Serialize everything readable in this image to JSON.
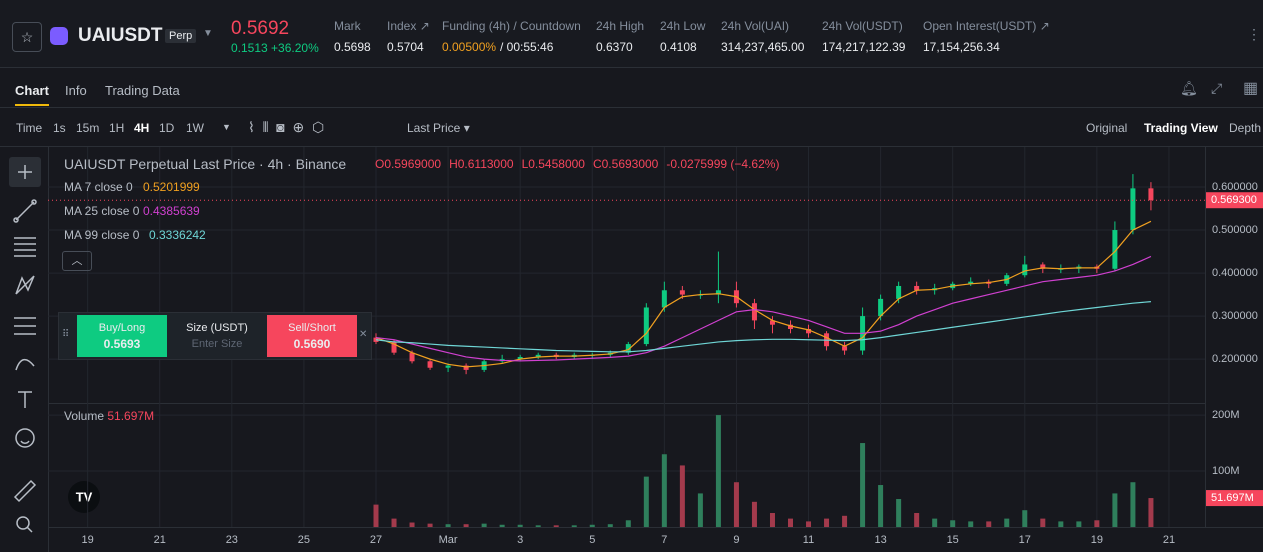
{
  "header": {
    "symbol": "UAIUSDT",
    "badge": "Perp",
    "price": "0.5692",
    "change": "0.1513 +36.20%",
    "stats": [
      {
        "label": "Mark",
        "value": "0.5698"
      },
      {
        "label": "Index ↗",
        "value": "0.5704"
      },
      {
        "label": "Funding (4h) / Countdown",
        "value": "0.00500%",
        "value2": "/ 00:55:46"
      },
      {
        "label": "24h High",
        "value": "0.6370"
      },
      {
        "label": "24h Low",
        "value": "0.4108"
      },
      {
        "label": "24h Vol(UAI)",
        "value": "314,237,465.00"
      },
      {
        "label": "24h Vol(USDT)",
        "value": "174,217,122.39"
      },
      {
        "label": "Open Interest(USDT) ↗",
        "value": "17,154,256.34"
      }
    ]
  },
  "tabs": [
    "Chart",
    "Info",
    "Trading Data"
  ],
  "toolbar": {
    "intervals": [
      "Time",
      "1s",
      "15m",
      "1H",
      "4H",
      "1D",
      "1W"
    ],
    "price_type": "Last Price",
    "views": [
      "Original",
      "Trading View",
      "Depth"
    ]
  },
  "legend": {
    "title": "UAIUSDT Perpetual Last Price · 4h · Binance",
    "ohlc": [
      "O0.5969000",
      "H0.6113000",
      "L0.5458000",
      "C0.5693000",
      "-0.0275999 (−4.62%)"
    ],
    "volume_name": "Volume",
    "volume_value": "51.697M"
  },
  "order_panel": {
    "buy": "Buy/Long",
    "buy_price": "0.5693",
    "size": "Size (USDT)",
    "size_placeholder": "Enter Size",
    "sell": "Sell/Short",
    "sell_price": "0.5690"
  },
  "chart_data": {
    "type": "candlestick",
    "up_color": "#0ecb81",
    "down_color": "#f6465d",
    "grid": true,
    "x": [
      27,
      27.5,
      28,
      28.5,
      29,
      29.5,
      30,
      30.5,
      31,
      31.5,
      32,
      32.5,
      33,
      33.5,
      34,
      34.5,
      35,
      35.5,
      36,
      36.5,
      37,
      37.5,
      38,
      38.5,
      39,
      39.5,
      40,
      40.5,
      41,
      41.5,
      42,
      42.5,
      43,
      43.5,
      44,
      44.5,
      45,
      45.5,
      46,
      46.5,
      47,
      47.5,
      48,
      48.5
    ],
    "open": [
      0.25,
      0.24,
      0.215,
      0.195,
      0.18,
      0.185,
      0.175,
      0.195,
      0.2,
      0.205,
      0.21,
      0.205,
      0.21,
      0.21,
      0.215,
      0.235,
      0.32,
      0.36,
      0.35,
      0.35,
      0.36,
      0.33,
      0.29,
      0.28,
      0.27,
      0.26,
      0.23,
      0.22,
      0.3,
      0.34,
      0.37,
      0.36,
      0.365,
      0.375,
      0.38,
      0.375,
      0.395,
      0.42,
      0.41,
      0.41,
      0.415,
      0.41,
      0.5,
      0.5969
    ],
    "high": [
      0.26,
      0.245,
      0.22,
      0.2,
      0.19,
      0.19,
      0.2,
      0.21,
      0.21,
      0.215,
      0.215,
      0.215,
      0.215,
      0.22,
      0.24,
      0.33,
      0.38,
      0.37,
      0.36,
      0.45,
      0.38,
      0.34,
      0.3,
      0.29,
      0.28,
      0.265,
      0.24,
      0.32,
      0.35,
      0.38,
      0.38,
      0.375,
      0.38,
      0.39,
      0.385,
      0.4,
      0.44,
      0.425,
      0.42,
      0.42,
      0.42,
      0.52,
      0.63,
      0.6113
    ],
    "low": [
      0.235,
      0.21,
      0.19,
      0.175,
      0.17,
      0.165,
      0.17,
      0.19,
      0.195,
      0.2,
      0.2,
      0.2,
      0.2,
      0.205,
      0.21,
      0.23,
      0.31,
      0.34,
      0.34,
      0.33,
      0.32,
      0.27,
      0.26,
      0.26,
      0.25,
      0.22,
      0.21,
      0.21,
      0.29,
      0.33,
      0.35,
      0.35,
      0.36,
      0.37,
      0.365,
      0.37,
      0.39,
      0.4,
      0.4,
      0.4,
      0.4,
      0.405,
      0.49,
      0.5458
    ],
    "close": [
      0.24,
      0.215,
      0.195,
      0.18,
      0.185,
      0.175,
      0.195,
      0.2,
      0.205,
      0.21,
      0.205,
      0.21,
      0.21,
      0.215,
      0.235,
      0.32,
      0.36,
      0.35,
      0.35,
      0.36,
      0.33,
      0.29,
      0.28,
      0.27,
      0.26,
      0.23,
      0.22,
      0.3,
      0.34,
      0.37,
      0.36,
      0.365,
      0.375,
      0.38,
      0.375,
      0.395,
      0.42,
      0.41,
      0.41,
      0.415,
      0.41,
      0.5,
      0.5969,
      0.5693
    ],
    "last_price_label": "0.569300",
    "xlim": [
      17.9,
      50.0
    ],
    "xticks": [
      19,
      21,
      23,
      25,
      27,
      {
        "value": 29,
        "label": "Mar"
      },
      {
        "value": 31,
        "label": "3"
      },
      {
        "value": 33,
        "label": "5"
      },
      {
        "value": 35,
        "label": "7"
      },
      {
        "value": 37,
        "label": "9"
      },
      {
        "value": 39,
        "label": "11"
      },
      {
        "value": 41,
        "label": "13"
      },
      {
        "value": 43,
        "label": "15"
      },
      {
        "value": 45,
        "label": "17"
      },
      {
        "value": 47,
        "label": "19"
      },
      {
        "value": 49,
        "label": "21"
      }
    ],
    "ylim": [
      0.105,
      0.686
    ],
    "yticks": [
      {
        "value": 0.6,
        "label": "0.600000"
      },
      {
        "value": 0.5,
        "label": "0.500000"
      },
      {
        "value": 0.4,
        "label": "0.400000"
      },
      {
        "value": 0.3,
        "label": "0.300000"
      },
      {
        "value": 0.2,
        "label": "0.200000"
      }
    ],
    "ma": [
      {
        "name": "MA 7 close 0",
        "legend_value": "0.5201999",
        "color": "#f0a020",
        "values": [
          0.25,
          0.235,
          0.215,
          0.2,
          0.188,
          0.182,
          0.185,
          0.19,
          0.2,
          0.205,
          0.207,
          0.207,
          0.209,
          0.212,
          0.222,
          0.26,
          0.32,
          0.345,
          0.35,
          0.352,
          0.345,
          0.315,
          0.29,
          0.277,
          0.268,
          0.25,
          0.23,
          0.25,
          0.3,
          0.34,
          0.36,
          0.362,
          0.37,
          0.375,
          0.378,
          0.385,
          0.405,
          0.412,
          0.41,
          0.412,
          0.412,
          0.45,
          0.5,
          0.5202
        ]
      },
      {
        "name": "MA 25 close 0",
        "legend_value": "0.4385639",
        "color": "#d040d0",
        "values": [
          0.25,
          0.245,
          0.235,
          0.225,
          0.215,
          0.205,
          0.2,
          0.197,
          0.196,
          0.197,
          0.198,
          0.2,
          0.202,
          0.204,
          0.207,
          0.215,
          0.23,
          0.25,
          0.27,
          0.29,
          0.31,
          0.315,
          0.31,
          0.3,
          0.29,
          0.275,
          0.26,
          0.26,
          0.265,
          0.28,
          0.3,
          0.315,
          0.33,
          0.34,
          0.35,
          0.36,
          0.37,
          0.38,
          0.385,
          0.39,
          0.395,
          0.405,
          0.42,
          0.4386
        ]
      },
      {
        "name": "MA 99 close 0",
        "legend_value": "0.3336242",
        "color": "#6fd6d6",
        "values": [
          0.245,
          0.24,
          0.238,
          0.235,
          0.232,
          0.23,
          0.228,
          0.226,
          0.224,
          0.222,
          0.22,
          0.219,
          0.218,
          0.217,
          0.217,
          0.22,
          0.225,
          0.23,
          0.235,
          0.24,
          0.243,
          0.245,
          0.246,
          0.246,
          0.245,
          0.244,
          0.243,
          0.245,
          0.25,
          0.256,
          0.262,
          0.268,
          0.274,
          0.28,
          0.286,
          0.292,
          0.298,
          0.304,
          0.31,
          0.315,
          0.32,
          0.325,
          0.33,
          0.3336
        ]
      }
    ],
    "volume": {
      "up_color": "#2f7f5c",
      "down_color": "#a33a4c",
      "ylim": [
        0,
        218000000
      ],
      "yticks": [
        {
          "value": 200000000,
          "label": "200M"
        },
        {
          "value": 100000000,
          "label": "100M"
        }
      ],
      "values": [
        40000000,
        15000000,
        8000000,
        6000000,
        5000000,
        5000000,
        6000000,
        4000000,
        4000000,
        3000000,
        3000000,
        3000000,
        4000000,
        5000000,
        12000000,
        90000000,
        130000000,
        110000000,
        60000000,
        200000000,
        80000000,
        45000000,
        25000000,
        15000000,
        10000000,
        15000000,
        20000000,
        150000000,
        75000000,
        50000000,
        25000000,
        15000000,
        12000000,
        10000000,
        10000000,
        15000000,
        30000000,
        15000000,
        10000000,
        10000000,
        12000000,
        60000000,
        80000000,
        51697000
      ],
      "last_label": "51.697M"
    }
  }
}
